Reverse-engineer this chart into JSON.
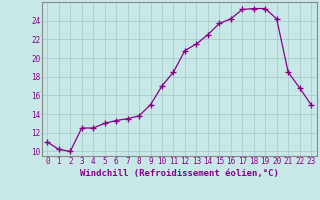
{
  "x": [
    0,
    1,
    2,
    3,
    4,
    5,
    6,
    7,
    8,
    9,
    10,
    11,
    12,
    13,
    14,
    15,
    16,
    17,
    18,
    19,
    20,
    21,
    22,
    23
  ],
  "y": [
    11.0,
    10.2,
    10.0,
    12.5,
    12.5,
    13.0,
    13.3,
    13.5,
    13.8,
    15.0,
    17.0,
    18.5,
    20.8,
    21.5,
    22.5,
    23.7,
    24.2,
    25.2,
    25.3,
    25.3,
    24.2,
    18.5,
    16.8,
    15.0
  ],
  "line_color": "#880088",
  "marker": "+",
  "marker_size": 4,
  "marker_lw": 1.0,
  "bg_color": "#c8e8e8",
  "grid_color": "#aacccc",
  "xlabel": "Windchill (Refroidissement éolien,°C)",
  "xlim": [
    -0.5,
    23.5
  ],
  "ylim": [
    9.5,
    26.0
  ],
  "yticks": [
    10,
    12,
    14,
    16,
    18,
    20,
    22,
    24
  ],
  "xticks": [
    0,
    1,
    2,
    3,
    4,
    5,
    6,
    7,
    8,
    9,
    10,
    11,
    12,
    13,
    14,
    15,
    16,
    17,
    18,
    19,
    20,
    21,
    22,
    23
  ],
  "tick_color": "#880088",
  "label_color": "#880088",
  "tick_fontsize": 5.5,
  "xlabel_fontsize": 6.5,
  "spine_color": "#888888",
  "linewidth": 0.9
}
